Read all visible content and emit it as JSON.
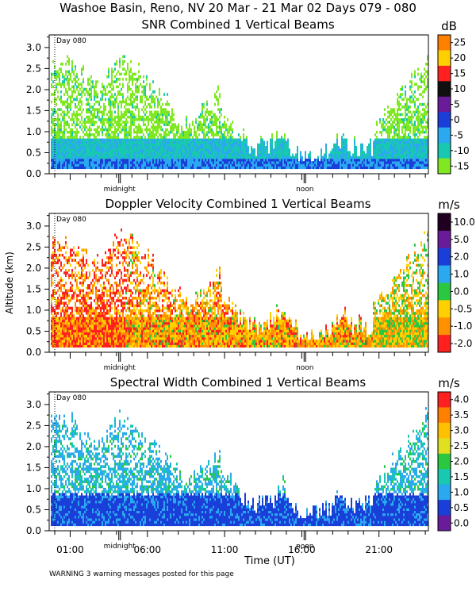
{
  "header": {
    "title": "Washoe Basin, Reno, NV  20 Mar - 21 Mar 02 Days 079 - 080"
  },
  "x_axis": {
    "label": "Time (UT)",
    "tick_labels": [
      "01:00",
      "06:00",
      "11:00",
      "16:00",
      "21:00"
    ],
    "markers": [
      "midnight",
      "noon"
    ]
  },
  "y_axis": {
    "label": "Altitude (km)",
    "tick_labels": [
      "0.0",
      "0.5",
      "1.0",
      "1.5",
      "2.0",
      "2.5",
      "3.0"
    ]
  },
  "day_label": "Day 080",
  "warning": "WARNING  3 warning messages posted for this page",
  "chart_data": [
    {
      "type": "heatmap",
      "title": "SNR Combined 1 Vertical Beams",
      "colorbar": {
        "unit": "dB",
        "tick_labels": [
          "25",
          "20",
          "15",
          "10",
          "5",
          "0",
          "-5",
          "-10",
          "-15"
        ],
        "colors": [
          "#ff8000",
          "#ffd000",
          "#ff2020",
          "#101010",
          "#6a1b9a",
          "#1a3fd8",
          "#2aa8f0",
          "#18c8b0",
          "#80e820"
        ]
      },
      "ylim": [
        0,
        3.3
      ]
    },
    {
      "type": "heatmap",
      "title": "Doppler Velocity Combined 1 Vertical Beams",
      "colorbar": {
        "unit": "m/s",
        "tick_labels": [
          "10.0",
          "5.0",
          "2.0",
          "1.0",
          "0.0",
          "-0.5",
          "-1.0",
          "-2.0"
        ],
        "colors": [
          "#200020",
          "#6a1b9a",
          "#1a3fd8",
          "#2aa8f0",
          "#2ac840",
          "#ffd000",
          "#ff9000",
          "#ff2020"
        ]
      },
      "ylim": [
        0,
        3.3
      ]
    },
    {
      "type": "heatmap",
      "title": "Spectral Width Combined 1 Vertical Beams",
      "colorbar": {
        "unit": "m/s",
        "tick_labels": [
          "4.0",
          "3.5",
          "3.0",
          "2.5",
          "2.0",
          "1.5",
          "1.0",
          "0.5",
          "0.0"
        ],
        "colors": [
          "#ff2020",
          "#ff8000",
          "#ffc000",
          "#e0e020",
          "#2ac840",
          "#18c8b0",
          "#2aa8f0",
          "#1a3fd8",
          "#6a1b9a"
        ]
      },
      "ylim": [
        0,
        3.3
      ]
    }
  ]
}
